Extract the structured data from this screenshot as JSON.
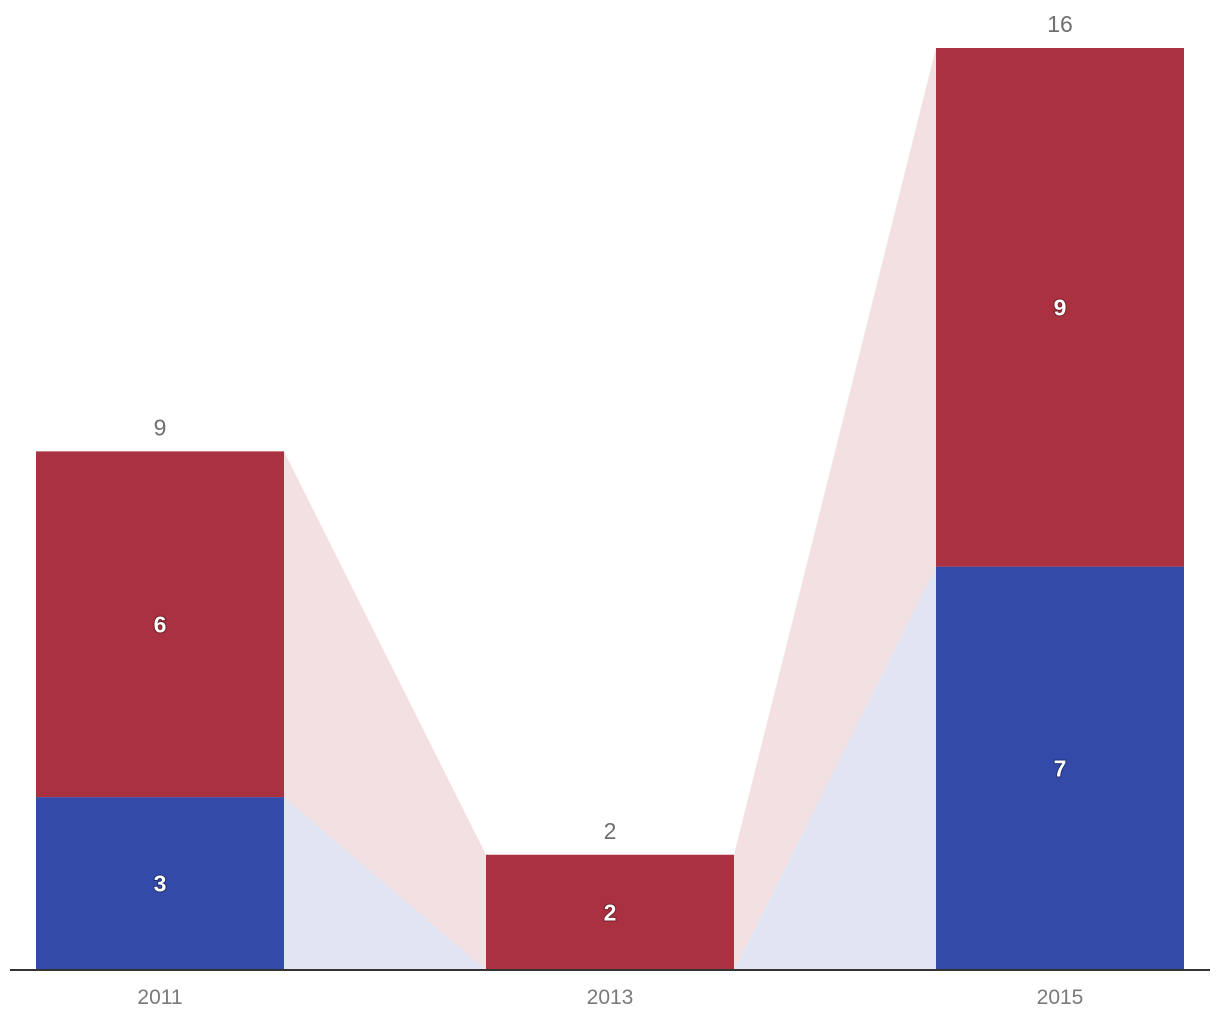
{
  "chart_data": {
    "type": "bar",
    "stacked": true,
    "categories": [
      "2011",
      "2013",
      "2015"
    ],
    "series": [
      {
        "values": [
          3,
          0,
          7
        ],
        "color": "#334aa9",
        "connector_color": "#e1e4f2"
      },
      {
        "values": [
          6,
          2,
          9
        ],
        "color": "#aa3140",
        "connector_color": "#f2e0e2"
      }
    ],
    "totals": [
      9,
      2,
      16
    ],
    "title": "",
    "xlabel": "",
    "ylabel": "",
    "ylim": [
      0,
      16
    ],
    "grid": false,
    "legend": "none",
    "axis_color": "#333333"
  }
}
